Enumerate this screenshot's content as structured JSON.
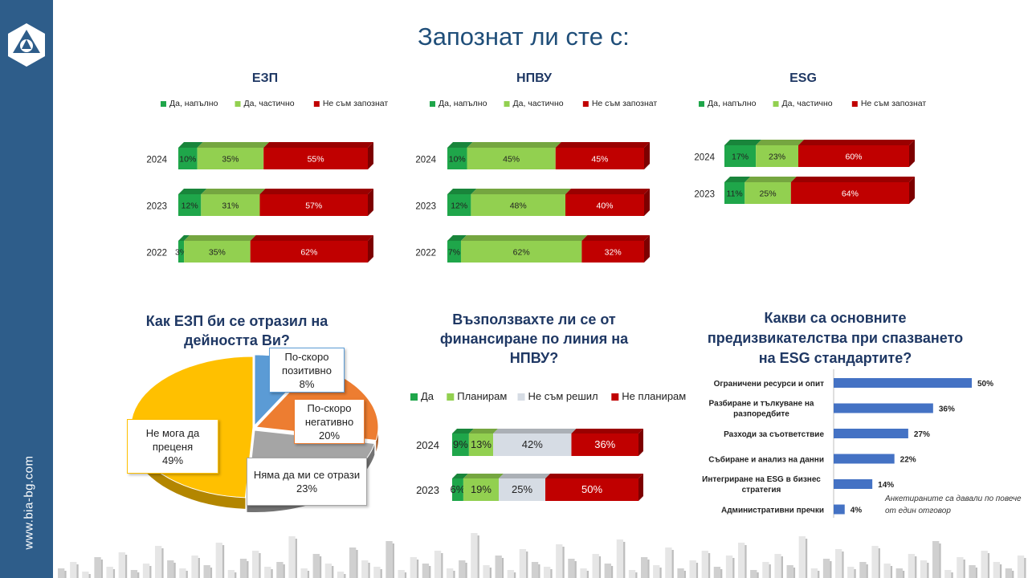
{
  "page": {
    "title": "Запознат ли сте с:",
    "website": "www.bia-bg.com"
  },
  "colors": {
    "green_dark": "#1fa64a",
    "green_light": "#92d050",
    "red": "#c00000",
    "grey": "#d6dce4",
    "blue": "#4472c4",
    "pie_blue": "#5b9bd5",
    "pie_orange": "#ed7d31",
    "pie_grey": "#a5a5a5",
    "pie_yellow": "#ffc000",
    "sidebar": "#2e5d8a"
  },
  "awareness_legend": [
    "Да, напълно",
    "Да, частично",
    "Не съм запознат"
  ],
  "financing_legend": [
    "Да",
    "Планирам",
    "Не съм решил",
    "Не планирам"
  ],
  "chart_data": [
    {
      "type": "bar",
      "orientation": "horizontal-stacked-100",
      "title": "ЕЗП",
      "categories": [
        "2024",
        "2023",
        "2022"
      ],
      "series": [
        {
          "name": "Да, напълно",
          "values": [
            10,
            12,
            3
          ],
          "labels": [
            "10%",
            "12%",
            "3%"
          ]
        },
        {
          "name": "Да, частично",
          "values": [
            35,
            31,
            35
          ],
          "labels": [
            "35%",
            "31%",
            "35%"
          ]
        },
        {
          "name": "Не съм запознат",
          "values": [
            55,
            57,
            62
          ],
          "labels": [
            "55%",
            "57%",
            "62%"
          ]
        }
      ],
      "legend": "top"
    },
    {
      "type": "bar",
      "orientation": "horizontal-stacked-100",
      "title": "НПВУ",
      "categories": [
        "2024",
        "2023",
        "2022"
      ],
      "series": [
        {
          "name": "Да, напълно",
          "values": [
            10,
            12,
            7
          ],
          "labels": [
            "10%",
            "12%",
            "7%"
          ]
        },
        {
          "name": "Да, частично",
          "values": [
            45,
            48,
            62
          ],
          "labels": [
            "45%",
            "48%",
            "62%"
          ]
        },
        {
          "name": "Не съм запознат",
          "values": [
            45,
            40,
            32
          ],
          "labels": [
            "45%",
            "40%",
            "32%"
          ]
        }
      ],
      "legend": "top"
    },
    {
      "type": "bar",
      "orientation": "horizontal-stacked-100",
      "title": "ESG",
      "categories": [
        "2024",
        "2023"
      ],
      "series": [
        {
          "name": "Да, напълно",
          "values": [
            17,
            11
          ],
          "labels": [
            "17%",
            "11%"
          ]
        },
        {
          "name": "Да, частично",
          "values": [
            23,
            25
          ],
          "labels": [
            "23%",
            "25%"
          ]
        },
        {
          "name": "Не съм запознат",
          "values": [
            60,
            64
          ],
          "labels": [
            "60%",
            "64%"
          ]
        }
      ],
      "legend": "top"
    },
    {
      "type": "pie",
      "title": "Как ЕЗП би се отразил на дейността Ви?",
      "slices": [
        {
          "name": "По-скоро позитивно",
          "value": 8,
          "label": "8%"
        },
        {
          "name": "По-скоро негативно",
          "value": 20,
          "label": "20%"
        },
        {
          "name": "Няма да ми се отрази",
          "value": 23,
          "label": "23%"
        },
        {
          "name": "Не мога да преценя",
          "value": 49,
          "label": "49%"
        }
      ]
    },
    {
      "type": "bar",
      "orientation": "horizontal-stacked-100",
      "title": "Възползвахте ли се от финансиране по линия на НПВУ?",
      "categories": [
        "2024",
        "2023"
      ],
      "series": [
        {
          "name": "Да",
          "values": [
            9,
            6
          ],
          "labels": [
            "9%",
            "6%"
          ]
        },
        {
          "name": "Планирам",
          "values": [
            13,
            19
          ],
          "labels": [
            "13%",
            "19%"
          ]
        },
        {
          "name": "Не съм решил",
          "values": [
            42,
            25
          ],
          "labels": [
            "42%",
            "25%"
          ]
        },
        {
          "name": "Не планирам",
          "values": [
            36,
            50
          ],
          "labels": [
            "36%",
            "50%"
          ]
        }
      ],
      "legend": "top"
    },
    {
      "type": "bar",
      "orientation": "horizontal",
      "title": "Какви са основните предизвикателства при спазването на ESG стандартите?",
      "categories": [
        "Ограничени ресурси и опит",
        "Разбиране и тълкуване на разпоредбите",
        "Разходи за съответствие",
        "Събиране и анализ на данни",
        "Интегриране на ESG в бизнес стратегия",
        "Административни пречки"
      ],
      "values": [
        50,
        36,
        27,
        22,
        14,
        4
      ],
      "labels": [
        "50%",
        "36%",
        "27%",
        "22%",
        "14%",
        "4%"
      ],
      "note": "Анкетираните са давали по повече от един отговор"
    }
  ]
}
